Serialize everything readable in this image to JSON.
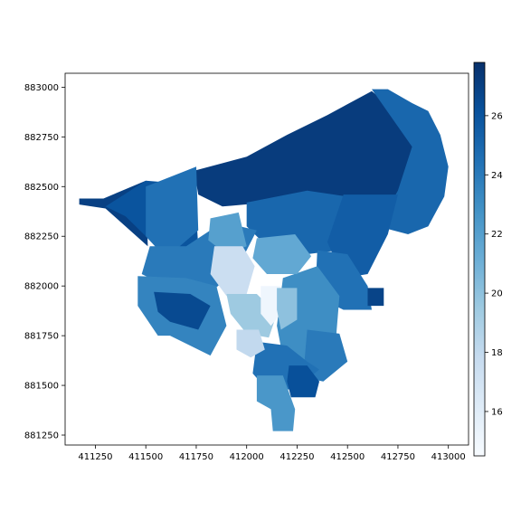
{
  "chart_data": {
    "type": "heatmap",
    "title": "",
    "xlabel": "",
    "ylabel": "",
    "xlim": [
      411100,
      413100
    ],
    "ylim": [
      881200,
      883070
    ],
    "x_ticks": [
      411250,
      411500,
      411750,
      412000,
      412250,
      412500,
      412750,
      413000
    ],
    "y_ticks": [
      881250,
      881500,
      881750,
      882000,
      882250,
      882500,
      882750,
      883000
    ],
    "x_tick_labels": [
      "411250",
      "411500",
      "411750",
      "412000",
      "412250",
      "412500",
      "412750",
      "413000"
    ],
    "y_tick_labels": [
      "881250",
      "881500",
      "881750",
      "882000",
      "882250",
      "882500",
      "882750",
      "883000"
    ],
    "grid": false,
    "colormap": "Blues",
    "colorbar": {
      "range": [
        14.5,
        27.8
      ],
      "ticks": [
        16,
        18,
        20,
        22,
        24,
        26
      ],
      "tick_labels": [
        "16",
        "18",
        "20",
        "22",
        "24",
        "26"
      ],
      "placement": "right"
    },
    "regions": [
      {
        "value": 27.0,
        "polygon": [
          [
            411170,
            882440
          ],
          [
            411290,
            882440
          ],
          [
            411500,
            882530
          ],
          [
            411510,
            882200
          ],
          [
            411300,
            882390
          ],
          [
            411170,
            882410
          ]
        ]
      },
      {
        "value": 26.0,
        "polygon": [
          [
            411300,
            882400
          ],
          [
            411500,
            882530
          ],
          [
            411740,
            882510
          ],
          [
            411760,
            882200
          ],
          [
            411600,
            882180
          ],
          [
            411500,
            882250
          ],
          [
            411400,
            882350
          ]
        ]
      },
      {
        "value": 27.2,
        "polygon": [
          [
            411740,
            882580
          ],
          [
            412000,
            882650
          ],
          [
            412200,
            882760
          ],
          [
            412400,
            882860
          ],
          [
            412620,
            882980
          ],
          [
            412800,
            882830
          ],
          [
            412850,
            882660
          ],
          [
            412750,
            882440
          ],
          [
            412500,
            882300
          ],
          [
            412300,
            882390
          ],
          [
            412100,
            882420
          ],
          [
            411880,
            882400
          ],
          [
            411760,
            882460
          ]
        ]
      },
      {
        "value": 25.0,
        "polygon": [
          [
            412620,
            882990
          ],
          [
            412700,
            882990
          ],
          [
            412820,
            882920
          ],
          [
            412900,
            882880
          ],
          [
            412960,
            882760
          ],
          [
            413000,
            882600
          ],
          [
            412980,
            882450
          ],
          [
            412900,
            882300
          ],
          [
            412800,
            882260
          ],
          [
            412650,
            882300
          ],
          [
            412750,
            882480
          ],
          [
            412820,
            882700
          ]
        ]
      },
      {
        "value": 24.5,
        "polygon": [
          [
            411500,
            882500
          ],
          [
            411750,
            882600
          ],
          [
            411760,
            882280
          ],
          [
            411600,
            882140
          ],
          [
            411500,
            882250
          ]
        ]
      },
      {
        "value": 25.0,
        "polygon": [
          [
            412000,
            882420
          ],
          [
            412300,
            882480
          ],
          [
            412500,
            882450
          ],
          [
            412460,
            882180
          ],
          [
            412300,
            882160
          ],
          [
            412100,
            882200
          ],
          [
            412000,
            882300
          ]
        ]
      },
      {
        "value": 24.0,
        "polygon": [
          [
            411520,
            882200
          ],
          [
            411700,
            882200
          ],
          [
            411880,
            882320
          ],
          [
            412050,
            882280
          ],
          [
            411950,
            882080
          ],
          [
            411800,
            881950
          ],
          [
            411600,
            882000
          ],
          [
            411480,
            882060
          ]
        ]
      },
      {
        "value": 23.5,
        "polygon": [
          [
            411460,
            882050
          ],
          [
            411700,
            882040
          ],
          [
            411850,
            882000
          ],
          [
            411900,
            881800
          ],
          [
            411820,
            881650
          ],
          [
            411620,
            881750
          ],
          [
            411560,
            881750
          ],
          [
            411460,
            881900
          ]
        ]
      },
      {
        "value": 26.5,
        "polygon": [
          [
            411540,
            881970
          ],
          [
            411720,
            881960
          ],
          [
            411820,
            881900
          ],
          [
            411760,
            881780
          ],
          [
            411620,
            881820
          ],
          [
            411560,
            881870
          ]
        ]
      },
      {
        "value": 25.5,
        "polygon": [
          [
            412480,
            882460
          ],
          [
            412750,
            882460
          ],
          [
            412700,
            882260
          ],
          [
            412600,
            882060
          ],
          [
            412480,
            882040
          ],
          [
            412400,
            882220
          ]
        ]
      },
      {
        "value": 24.5,
        "polygon": [
          [
            412350,
            882180
          ],
          [
            412500,
            882160
          ],
          [
            412600,
            882000
          ],
          [
            412620,
            881880
          ],
          [
            412480,
            881880
          ],
          [
            412340,
            881950
          ]
        ]
      },
      {
        "value": 26.8,
        "polygon": [
          [
            412600,
            881990
          ],
          [
            412680,
            881990
          ],
          [
            412680,
            881900
          ],
          [
            412600,
            881900
          ]
        ]
      },
      {
        "value": 23.0,
        "polygon": [
          [
            412180,
            882040
          ],
          [
            412350,
            882100
          ],
          [
            412460,
            881950
          ],
          [
            412440,
            881700
          ],
          [
            412300,
            881600
          ],
          [
            412180,
            881640
          ],
          [
            412150,
            881800
          ]
        ]
      },
      {
        "value": 24.0,
        "polygon": [
          [
            412300,
            881780
          ],
          [
            412460,
            881760
          ],
          [
            412500,
            881620
          ],
          [
            412380,
            881520
          ],
          [
            412280,
            881540
          ]
        ]
      },
      {
        "value": 24.5,
        "polygon": [
          [
            412050,
            881720
          ],
          [
            412200,
            881700
          ],
          [
            412300,
            881620
          ],
          [
            412360,
            881580
          ],
          [
            412240,
            881480
          ],
          [
            412100,
            881480
          ],
          [
            412030,
            881560
          ]
        ]
      },
      {
        "value": 26.2,
        "polygon": [
          [
            412210,
            881600
          ],
          [
            412300,
            881600
          ],
          [
            412360,
            881520
          ],
          [
            412340,
            881440
          ],
          [
            412220,
            881440
          ],
          [
            412200,
            881520
          ]
        ]
      },
      {
        "value": 22.5,
        "polygon": [
          [
            412050,
            881550
          ],
          [
            412180,
            881550
          ],
          [
            412240,
            881380
          ],
          [
            412230,
            881270
          ],
          [
            412130,
            881270
          ],
          [
            412120,
            881380
          ],
          [
            412050,
            881420
          ]
        ]
      },
      {
        "value": 22.0,
        "polygon": [
          [
            411820,
            882340
          ],
          [
            411960,
            882370
          ],
          [
            412000,
            882200
          ],
          [
            411900,
            882160
          ],
          [
            411810,
            882230
          ]
        ]
      },
      {
        "value": 17.5,
        "polygon": [
          [
            411840,
            882200
          ],
          [
            411980,
            882200
          ],
          [
            412040,
            882100
          ],
          [
            412000,
            881960
          ],
          [
            411900,
            881950
          ],
          [
            411820,
            882060
          ]
        ]
      },
      {
        "value": 21.5,
        "polygon": [
          [
            412050,
            882240
          ],
          [
            412240,
            882260
          ],
          [
            412320,
            882150
          ],
          [
            412250,
            882060
          ],
          [
            412100,
            882060
          ],
          [
            412030,
            882140
          ]
        ]
      },
      {
        "value": 19.5,
        "polygon": [
          [
            411900,
            881960
          ],
          [
            412050,
            881960
          ],
          [
            412150,
            881860
          ],
          [
            412110,
            881740
          ],
          [
            412000,
            881760
          ],
          [
            411920,
            881860
          ]
        ]
      },
      {
        "value": 15.0,
        "polygon": [
          [
            412070,
            882000
          ],
          [
            412170,
            882000
          ],
          [
            412170,
            881860
          ],
          [
            412120,
            881800
          ],
          [
            412070,
            881860
          ]
        ]
      },
      {
        "value": 18.0,
        "polygon": [
          [
            411950,
            881780
          ],
          [
            412060,
            881780
          ],
          [
            412090,
            881680
          ],
          [
            412020,
            881640
          ],
          [
            411950,
            881680
          ]
        ]
      },
      {
        "value": 20.0,
        "polygon": [
          [
            412150,
            881990
          ],
          [
            412250,
            881990
          ],
          [
            412250,
            881830
          ],
          [
            412170,
            881780
          ],
          [
            412150,
            881880
          ]
        ]
      }
    ]
  }
}
